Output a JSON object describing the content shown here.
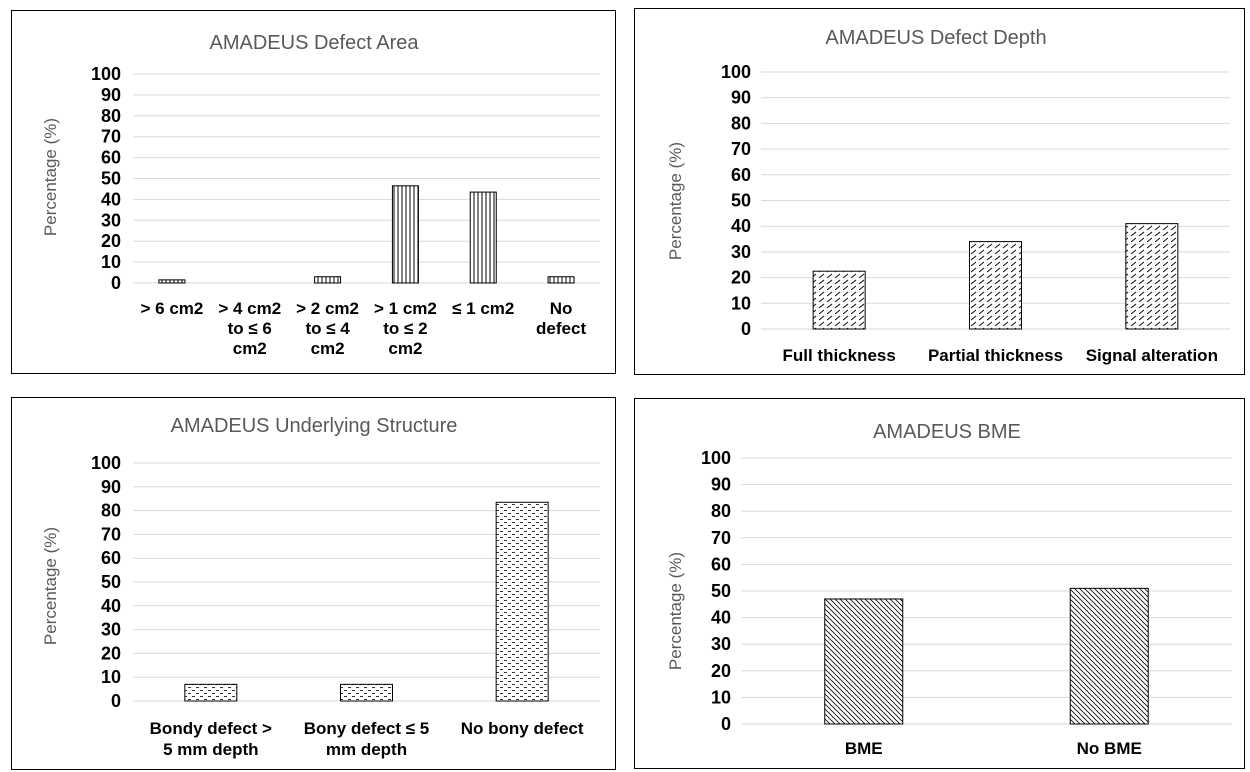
{
  "chart_data": [
    {
      "type": "bar",
      "title": "AMADEUS Defect Area",
      "ylabel": "Percentage (%)",
      "xlabel": "",
      "ylim": [
        0,
        100
      ],
      "yticks": [
        "0",
        "10",
        "20",
        "30",
        "40",
        "50",
        "60",
        "70",
        "80",
        "90",
        "100"
      ],
      "grid": true,
      "categories": [
        "> 6 cm2",
        "> 4 cm2 to ≤ 6 cm2",
        "> 2 cm2 to ≤ 4 cm2",
        "> 1 cm2 to ≤ 2 cm2",
        "≤ 1 cm2",
        "No defect"
      ],
      "category_lines": [
        [
          "> 6 cm2"
        ],
        [
          "> 4 cm2",
          "to ≤ 6",
          "cm2"
        ],
        [
          "> 2 cm2",
          "to ≤ 4",
          "cm2"
        ],
        [
          "> 1 cm2",
          "to ≤ 2",
          "cm2"
        ],
        [
          "≤ 1 cm2"
        ],
        [
          "No",
          "defect"
        ]
      ],
      "values": [
        1.5,
        0,
        3,
        46.5,
        43.5,
        3
      ],
      "pattern": "vertical-lines"
    },
    {
      "type": "bar",
      "title": "AMADEUS Defect Depth",
      "ylabel": "Percentage (%)",
      "xlabel": "",
      "ylim": [
        0,
        100
      ],
      "yticks": [
        "0",
        "10",
        "20",
        "30",
        "40",
        "50",
        "60",
        "70",
        "80",
        "90",
        "100"
      ],
      "grid": true,
      "categories": [
        "Full thickness",
        "Partial thickness",
        "Signal alteration"
      ],
      "category_lines": [
        [
          "Full thickness"
        ],
        [
          "Partial thickness"
        ],
        [
          "Signal alteration"
        ]
      ],
      "values": [
        22.5,
        34,
        41
      ],
      "pattern": "dashed-diagonal"
    },
    {
      "type": "bar",
      "title": "AMADEUS Underlying Structure",
      "ylabel": "Percentage (%)",
      "xlabel": "",
      "ylim": [
        0,
        100
      ],
      "yticks": [
        "0",
        "10",
        "20",
        "30",
        "40",
        "50",
        "60",
        "70",
        "80",
        "90",
        "100"
      ],
      "grid": true,
      "categories": [
        "Bondy defect > 5 mm depth",
        "Bony defect ≤ 5 mm depth",
        "No bony defect"
      ],
      "category_lines": [
        [
          "Bondy defect >",
          "5 mm depth"
        ],
        [
          "Bony defect ≤ 5",
          "mm depth"
        ],
        [
          "No bony defect"
        ]
      ],
      "values": [
        7,
        7,
        83.5
      ],
      "pattern": "dashed-horizontal"
    },
    {
      "type": "bar",
      "title": "AMADEUS BME",
      "ylabel": "Percentage (%)",
      "xlabel": "",
      "ylim": [
        0,
        100
      ],
      "yticks": [
        "0",
        "10",
        "20",
        "30",
        "40",
        "50",
        "60",
        "70",
        "80",
        "90",
        "100"
      ],
      "grid": true,
      "categories": [
        "BME",
        "No BME"
      ],
      "category_lines": [
        [
          "BME"
        ],
        [
          "No BME"
        ]
      ],
      "values": [
        47,
        51
      ],
      "pattern": "diagonal-lines"
    }
  ]
}
